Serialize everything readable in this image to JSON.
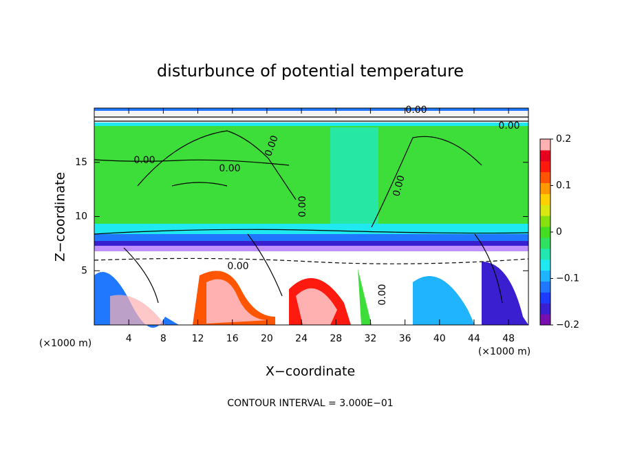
{
  "chart_data": {
    "type": "contour",
    "title": "disturbunce of potential temperature",
    "x_label": "X−coordinate",
    "y_label": "Z−coordinate",
    "x_unit_left": "(×1000 m)",
    "x_unit_right": "(×1000 m)",
    "footer": "CONTOUR INTERVAL = 3.000E−01",
    "xlim": [
      0,
      50.3
    ],
    "xticks": [
      4,
      8,
      12,
      16,
      20,
      24,
      28,
      32,
      36,
      40,
      44,
      48
    ],
    "ylim": [
      0,
      20
    ],
    "yticks": [
      5,
      10,
      15
    ],
    "colorbar_lim": [
      -0.2,
      0.2
    ],
    "colorbar_ticks": [
      {
        "value": -0.2,
        "label": "−0.2"
      },
      {
        "value": -0.1,
        "label": "−0.1"
      },
      0,
      0.1,
      0.2
    ],
    "colormap": [
      "#7a0fb0",
      "#3a1fd0",
      "#1e3cff",
      "#1f78ff",
      "#20b4ff",
      "#20e8f0",
      "#22e8b0",
      "#30e060",
      "#44dd22",
      "#88e010",
      "#d8e810",
      "#ffd000",
      "#ff9900",
      "#ff5500",
      "#ff1a10",
      "#e80020",
      "#ffb0b0"
    ],
    "contour_labels": [
      "0.00",
      "0.00",
      "0.00",
      "0.00",
      "0.00",
      "0.00",
      "0.00",
      "0.00",
      "0.00"
    ]
  }
}
